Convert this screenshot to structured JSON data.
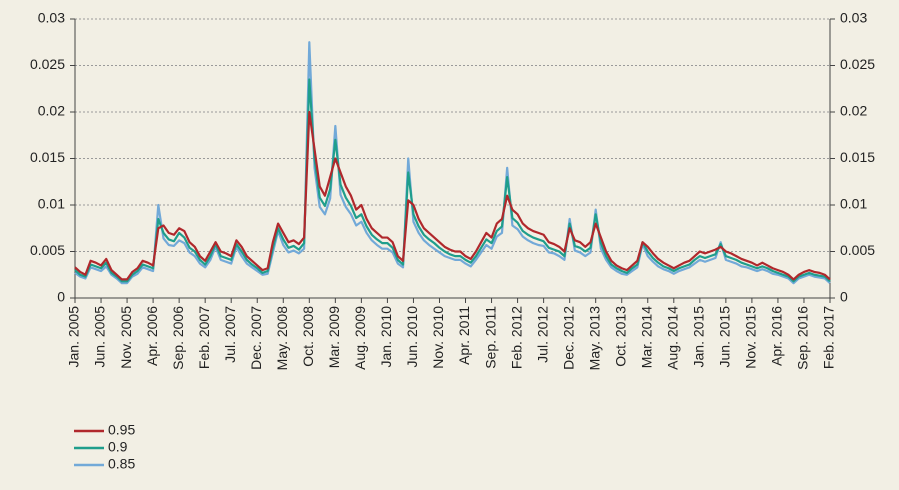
{
  "chart_data": {
    "type": "line",
    "categories": [
      "Jan. 2005",
      null,
      null,
      null,
      null,
      "Jun. 2005",
      null,
      null,
      null,
      null,
      "Nov. 2005",
      null,
      null,
      null,
      null,
      "Apr. 2006",
      null,
      null,
      null,
      null,
      "Sep. 2006",
      null,
      null,
      null,
      null,
      "Feb. 2007",
      null,
      null,
      null,
      null,
      "Jul. 2007",
      null,
      null,
      null,
      null,
      "Dec. 2007",
      null,
      null,
      null,
      null,
      "May. 2008",
      null,
      null,
      null,
      null,
      "Oct. 2008",
      null,
      null,
      null,
      null,
      "Mar. 2009",
      null,
      null,
      null,
      null,
      "Aug. 2009",
      null,
      null,
      null,
      null,
      "Jan. 2010",
      null,
      null,
      null,
      null,
      "Jun. 2010",
      null,
      null,
      null,
      null,
      "Nov. 2010",
      null,
      null,
      null,
      null,
      "Apr. 2011",
      null,
      null,
      null,
      null,
      "Sep. 2011",
      null,
      null,
      null,
      null,
      "Feb. 2012",
      null,
      null,
      null,
      null,
      "Jul. 2012",
      null,
      null,
      null,
      null,
      "Dec. 2012",
      null,
      null,
      null,
      null,
      "May. 2013",
      null,
      null,
      null,
      null,
      "Oct. 2013",
      null,
      null,
      null,
      null,
      "Mar. 2014",
      null,
      null,
      null,
      null,
      "Aug. 2014",
      null,
      null,
      null,
      null,
      "Jan. 2015",
      null,
      null,
      null,
      null,
      "Jun. 2015",
      null,
      null,
      null,
      null,
      "Nov. 2015",
      null,
      null,
      null,
      null,
      "Apr. 2016",
      null,
      null,
      null,
      null,
      "Sep. 2016",
      null,
      null,
      null,
      null,
      "Feb. 2017"
    ],
    "series": [
      {
        "name": "0.95",
        "color": "#b0282c",
        "values": [
          0.0033,
          0.0028,
          0.0025,
          0.004,
          0.0038,
          0.0035,
          0.0042,
          0.003,
          0.0025,
          0.002,
          0.002,
          0.0028,
          0.0032,
          0.004,
          0.0038,
          0.0035,
          0.0075,
          0.0078,
          0.007,
          0.0068,
          0.0075,
          0.0072,
          0.006,
          0.0055,
          0.0045,
          0.004,
          0.005,
          0.006,
          0.005,
          0.0048,
          0.0045,
          0.0062,
          0.0055,
          0.0045,
          0.004,
          0.0035,
          0.003,
          0.0032,
          0.006,
          0.008,
          0.007,
          0.006,
          0.0062,
          0.0058,
          0.0065,
          0.02,
          0.016,
          0.012,
          0.011,
          0.013,
          0.015,
          0.0135,
          0.012,
          0.011,
          0.0095,
          0.01,
          0.0085,
          0.0075,
          0.007,
          0.0065,
          0.0065,
          0.006,
          0.0045,
          0.004,
          0.0105,
          0.01,
          0.0085,
          0.0075,
          0.007,
          0.0065,
          0.006,
          0.0055,
          0.0052,
          0.005,
          0.005,
          0.0045,
          0.0042,
          0.005,
          0.006,
          0.007,
          0.0065,
          0.008,
          0.0085,
          0.011,
          0.0095,
          0.009,
          0.008,
          0.0075,
          0.0072,
          0.007,
          0.0068,
          0.006,
          0.0058,
          0.0055,
          0.005,
          0.0075,
          0.0062,
          0.006,
          0.0055,
          0.006,
          0.008,
          0.0065,
          0.005,
          0.004,
          0.0035,
          0.0032,
          0.003,
          0.0035,
          0.004,
          0.006,
          0.0055,
          0.0048,
          0.0042,
          0.0038,
          0.0035,
          0.0032,
          0.0035,
          0.0038,
          0.004,
          0.0045,
          0.005,
          0.0048,
          0.005,
          0.0052,
          0.0055,
          0.005,
          0.0048,
          0.0045,
          0.0042,
          0.004,
          0.0038,
          0.0035,
          0.0038,
          0.0035,
          0.0032,
          0.003,
          0.0028,
          0.0025,
          0.002,
          0.0025,
          0.0028,
          0.003,
          0.0028,
          0.0027,
          0.0025,
          0.002
        ]
      },
      {
        "name": "0.9",
        "color": "#1f9e8c",
        "values": [
          0.003,
          0.0025,
          0.0023,
          0.0036,
          0.0034,
          0.0032,
          0.0038,
          0.0027,
          0.0023,
          0.0018,
          0.0018,
          0.0025,
          0.0029,
          0.0036,
          0.0034,
          0.0032,
          0.0085,
          0.007,
          0.0063,
          0.0061,
          0.007,
          0.0065,
          0.0054,
          0.005,
          0.0041,
          0.0036,
          0.0045,
          0.0058,
          0.0045,
          0.0043,
          0.0041,
          0.0058,
          0.005,
          0.0041,
          0.0036,
          0.0032,
          0.0027,
          0.0029,
          0.0054,
          0.0075,
          0.0063,
          0.0054,
          0.0056,
          0.0052,
          0.0059,
          0.0235,
          0.015,
          0.0108,
          0.0099,
          0.0117,
          0.017,
          0.0122,
          0.0108,
          0.0099,
          0.0086,
          0.009,
          0.0077,
          0.0068,
          0.0063,
          0.0059,
          0.0059,
          0.0054,
          0.0041,
          0.0036,
          0.0135,
          0.009,
          0.0077,
          0.0068,
          0.0063,
          0.0059,
          0.0054,
          0.005,
          0.0047,
          0.0045,
          0.0045,
          0.0041,
          0.0038,
          0.0045,
          0.0054,
          0.0063,
          0.0059,
          0.0072,
          0.0077,
          0.013,
          0.0086,
          0.0081,
          0.0072,
          0.0068,
          0.0065,
          0.0063,
          0.0061,
          0.0054,
          0.0052,
          0.005,
          0.0045,
          0.008,
          0.0056,
          0.0054,
          0.005,
          0.0054,
          0.009,
          0.0059,
          0.0045,
          0.0036,
          0.0032,
          0.0029,
          0.0027,
          0.0032,
          0.0036,
          0.006,
          0.005,
          0.0043,
          0.0038,
          0.0034,
          0.0032,
          0.0029,
          0.0032,
          0.0034,
          0.0036,
          0.0041,
          0.0045,
          0.0043,
          0.0045,
          0.0047,
          0.0058,
          0.0045,
          0.0043,
          0.0041,
          0.0038,
          0.0036,
          0.0034,
          0.0032,
          0.0034,
          0.0032,
          0.0029,
          0.0027,
          0.0025,
          0.0023,
          0.0018,
          0.0023,
          0.0025,
          0.0027,
          0.0025,
          0.0024,
          0.0023,
          0.0018
        ]
      },
      {
        "name": "0.85",
        "color": "#72a9d8",
        "values": [
          0.0027,
          0.0023,
          0.0021,
          0.0033,
          0.0031,
          0.0029,
          0.0034,
          0.0025,
          0.0021,
          0.0016,
          0.0016,
          0.0023,
          0.0026,
          0.0033,
          0.0031,
          0.0029,
          0.01,
          0.0064,
          0.0057,
          0.0056,
          0.0062,
          0.0059,
          0.0049,
          0.0045,
          0.0037,
          0.0033,
          0.0041,
          0.0055,
          0.0041,
          0.0039,
          0.0037,
          0.0055,
          0.0045,
          0.0037,
          0.0033,
          0.0029,
          0.0025,
          0.0026,
          0.0049,
          0.0072,
          0.0057,
          0.0049,
          0.0051,
          0.0048,
          0.0053,
          0.0275,
          0.014,
          0.0098,
          0.009,
          0.0107,
          0.0185,
          0.0111,
          0.0098,
          0.009,
          0.0078,
          0.0082,
          0.007,
          0.0062,
          0.0057,
          0.0053,
          0.0053,
          0.0049,
          0.0037,
          0.0033,
          0.015,
          0.0082,
          0.007,
          0.0062,
          0.0057,
          0.0053,
          0.0049,
          0.0045,
          0.0043,
          0.0041,
          0.0041,
          0.0037,
          0.0034,
          0.0041,
          0.0049,
          0.0057,
          0.0053,
          0.0066,
          0.007,
          0.014,
          0.0078,
          0.0074,
          0.0066,
          0.0062,
          0.0059,
          0.0057,
          0.0056,
          0.0049,
          0.0048,
          0.0045,
          0.0041,
          0.0085,
          0.0051,
          0.0049,
          0.0045,
          0.0049,
          0.0095,
          0.0053,
          0.0041,
          0.0033,
          0.0029,
          0.0026,
          0.0025,
          0.0029,
          0.0033,
          0.0058,
          0.0045,
          0.0039,
          0.0034,
          0.0031,
          0.0029,
          0.0026,
          0.0029,
          0.0031,
          0.0033,
          0.0037,
          0.0041,
          0.0039,
          0.0041,
          0.0043,
          0.006,
          0.0041,
          0.0039,
          0.0037,
          0.0034,
          0.0033,
          0.0031,
          0.0029,
          0.0031,
          0.0029,
          0.0026,
          0.0025,
          0.0023,
          0.0021,
          0.0016,
          0.0021,
          0.0023,
          0.0025,
          0.0023,
          0.0022,
          0.0021,
          0.0016
        ]
      }
    ],
    "ylim": [
      0,
      0.03
    ],
    "yticks": [
      0,
      0.005,
      0.01,
      0.015,
      0.02,
      0.025,
      0.03
    ],
    "y2lim": [
      0,
      0.03
    ],
    "y2ticks": [
      0,
      0.005,
      0.01,
      0.015,
      0.02,
      0.025,
      0.03
    ],
    "grid": true,
    "legend": "bottom-left"
  }
}
